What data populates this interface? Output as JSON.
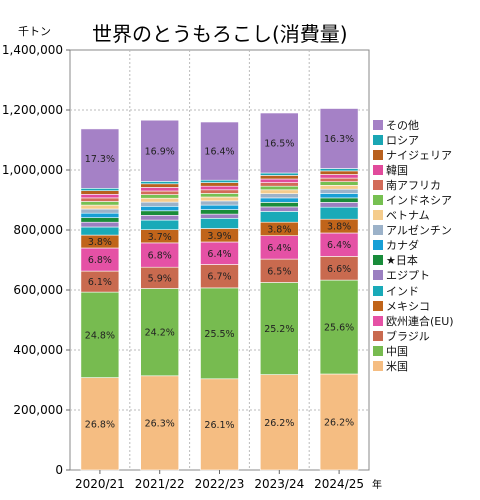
{
  "chart_data": {
    "type": "bar",
    "stacked": true,
    "title": "世界のとうもろこし(消費量)",
    "unit_label": "千トン",
    "x_unit": "年",
    "categories": [
      "2020/21",
      "2021/22",
      "2022/23",
      "2023/24",
      "2024/25"
    ],
    "ylim": [
      0,
      1400000
    ],
    "yticks": [
      "0",
      "200,000",
      "400,000",
      "600,000",
      "800,000",
      "1,000,000",
      "1,200,000",
      "1,400,000"
    ],
    "ytick_values": [
      0,
      200000,
      400000,
      600000,
      800000,
      1000000,
      1200000,
      1400000
    ],
    "grid": true,
    "legend_position": "right",
    "series": [
      {
        "name": "米国",
        "color": "#f5bd82",
        "values": [
          308000,
          314000,
          304000,
          318000,
          320000
        ],
        "labels": [
          "26.8%",
          "26.3%",
          "26.1%",
          "26.2%",
          "26.2%"
        ]
      },
      {
        "name": "中国",
        "color": "#77bb50",
        "values": [
          285000,
          291000,
          303000,
          307000,
          313000
        ],
        "labels": [
          "24.8%",
          "24.2%",
          "25.5%",
          "25.2%",
          "25.6%"
        ]
      },
      {
        "name": "ブラジル",
        "color": "#c96a4f",
        "values": [
          70000,
          71000,
          78000,
          78000,
          79000
        ],
        "labels": [
          "6.1%",
          "5.9%",
          "6.7%",
          "6.5%",
          "6.6%"
        ]
      },
      {
        "name": "欧州連合(EU)",
        "color": "#e551a5",
        "values": [
          77000,
          81000,
          75000,
          78000,
          78000
        ],
        "labels": [
          "6.8%",
          "6.8%",
          "6.4%",
          "6.4%",
          "6.4%"
        ]
      },
      {
        "name": "メキシコ",
        "color": "#c0641a",
        "values": [
          43000,
          44000,
          45000,
          45000,
          46000
        ],
        "labels": [
          "3.8%",
          "3.7%",
          "3.9%",
          "3.8%",
          "3.8%"
        ]
      },
      {
        "name": "インド",
        "color": "#19aab8",
        "values": [
          27000,
          32000,
          34000,
          36000,
          40000
        ]
      },
      {
        "name": "エジプト",
        "color": "#9b7fc1",
        "values": [
          16000,
          16000,
          14000,
          15000,
          16000
        ]
      },
      {
        "name": "★日本",
        "color": "#198c3a",
        "values": [
          15000,
          15000,
          15000,
          15000,
          15000
        ]
      },
      {
        "name": "カナダ",
        "color": "#179fd6",
        "values": [
          15000,
          15000,
          15000,
          15000,
          15000
        ]
      },
      {
        "name": "アルゼンチン",
        "color": "#9cb2c9",
        "values": [
          14000,
          14000,
          14000,
          14000,
          14000
        ]
      },
      {
        "name": "ベトナム",
        "color": "#f5cc8c",
        "values": [
          13000,
          13000,
          13000,
          13000,
          13000
        ]
      },
      {
        "name": "インドネシア",
        "color": "#76c052",
        "values": [
          12000,
          12000,
          12000,
          12000,
          12000
        ]
      },
      {
        "name": "南アフリカ",
        "color": "#d36b59",
        "values": [
          12000,
          12000,
          12000,
          12000,
          12000
        ]
      },
      {
        "name": "韓国",
        "color": "#e14b9c",
        "values": [
          12000,
          12000,
          12000,
          12000,
          12000
        ]
      },
      {
        "name": "ナイジェリア",
        "color": "#b8601e",
        "values": [
          12000,
          12000,
          12000,
          12000,
          12000
        ]
      },
      {
        "name": "ロシア",
        "color": "#1aa6b3",
        "values": [
          8000,
          8000,
          8000,
          8000,
          8000
        ]
      },
      {
        "name": "その他",
        "color": "#a581c6",
        "values": [
          198000,
          204000,
          194000,
          200000,
          200000
        ],
        "labels": [
          "17.3%",
          "16.9%",
          "16.4%",
          "16.5%",
          "16.3%"
        ]
      }
    ]
  }
}
